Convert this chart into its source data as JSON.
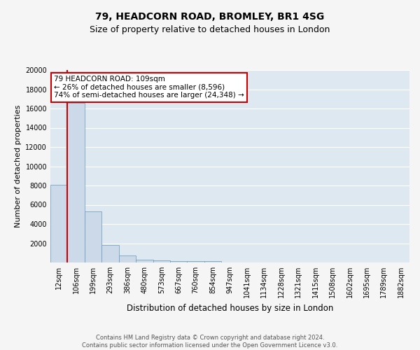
{
  "title": "79, HEADCORN ROAD, BROMLEY, BR1 4SG",
  "subtitle": "Size of property relative to detached houses in London",
  "xlabel": "Distribution of detached houses by size in London",
  "ylabel": "Number of detached properties",
  "bin_labels": [
    "12sqm",
    "106sqm",
    "199sqm",
    "293sqm",
    "386sqm",
    "480sqm",
    "573sqm",
    "667sqm",
    "760sqm",
    "854sqm",
    "947sqm",
    "1041sqm",
    "1134sqm",
    "1228sqm",
    "1321sqm",
    "1415sqm",
    "1508sqm",
    "1602sqm",
    "1695sqm",
    "1789sqm",
    "1882sqm"
  ],
  "bar_heights": [
    8100,
    16600,
    5300,
    1850,
    700,
    300,
    220,
    180,
    160,
    130,
    0,
    0,
    0,
    0,
    0,
    0,
    0,
    0,
    0,
    0,
    0
  ],
  "bar_color": "#ccd9e8",
  "bar_edge_color": "#6699bb",
  "property_line_color": "#cc0000",
  "annotation_text": "79 HEADCORN ROAD: 109sqm\n← 26% of detached houses are smaller (8,596)\n74% of semi-detached houses are larger (24,348) →",
  "annotation_box_facecolor": "#ffffff",
  "annotation_box_edgecolor": "#cc0000",
  "ylim": [
    0,
    20000
  ],
  "yticks": [
    0,
    2000,
    4000,
    6000,
    8000,
    10000,
    12000,
    14000,
    16000,
    18000,
    20000
  ],
  "plot_background_color": "#dde8f0",
  "fig_background_color": "#f5f5f5",
  "footer_text": "Contains HM Land Registry data © Crown copyright and database right 2024.\nContains public sector information licensed under the Open Government Licence v3.0.",
  "grid_color": "#ffffff",
  "title_fontsize": 10,
  "subtitle_fontsize": 9,
  "ylabel_fontsize": 8,
  "xlabel_fontsize": 8.5,
  "tick_fontsize": 7,
  "footer_fontsize": 6,
  "annotation_fontsize": 7.5
}
